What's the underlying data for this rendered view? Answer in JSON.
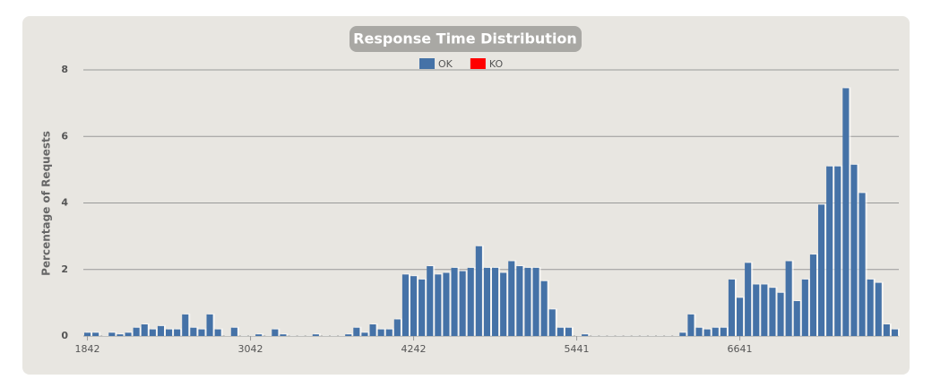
{
  "chart_data": {
    "type": "bar",
    "title": "Response Time Distribution",
    "y_label": "Percentage of Requests",
    "categories": [
      "1842",
      null,
      null,
      null,
      null,
      null,
      null,
      null,
      null,
      null,
      null,
      null,
      null,
      null,
      null,
      null,
      null,
      null,
      null,
      null,
      "3042",
      null,
      null,
      null,
      null,
      null,
      null,
      null,
      null,
      null,
      null,
      null,
      null,
      null,
      null,
      null,
      null,
      null,
      null,
      null,
      "4242",
      null,
      null,
      null,
      null,
      null,
      null,
      null,
      null,
      null,
      null,
      null,
      null,
      null,
      null,
      null,
      null,
      null,
      null,
      null,
      "5441",
      null,
      null,
      null,
      null,
      null,
      null,
      null,
      null,
      null,
      null,
      null,
      null,
      null,
      null,
      null,
      null,
      null,
      null,
      null,
      "6641",
      null,
      null,
      null,
      null,
      null,
      null,
      null,
      null,
      null,
      null,
      null,
      null,
      null,
      null,
      null,
      null,
      null,
      null,
      null
    ],
    "series": [
      {
        "name": "OK",
        "color": "#4572a7",
        "values": [
          0.1,
          0.1,
          0,
          0.1,
          0.05,
          0.1,
          0.25,
          0.35,
          0.2,
          0.3,
          0.2,
          0.2,
          0.65,
          0.25,
          0.2,
          0.65,
          0.2,
          0,
          0.25,
          0,
          0,
          0.05,
          0,
          0.2,
          0.05,
          0,
          0,
          0,
          0.05,
          0,
          0,
          0,
          0.05,
          0.25,
          0.1,
          0.35,
          0.2,
          0.2,
          0.5,
          1.85,
          1.8,
          1.7,
          2.1,
          1.85,
          1.9,
          2.05,
          1.95,
          2.05,
          2.7,
          2.05,
          2.05,
          1.9,
          2.25,
          2.1,
          2.05,
          2.05,
          1.65,
          0.8,
          0.25,
          0.25,
          0,
          0.05,
          0,
          0,
          0,
          0,
          0,
          0,
          0,
          0,
          0,
          0,
          0,
          0.1,
          0.65,
          0.25,
          0.2,
          0.25,
          0.25,
          1.7,
          1.15,
          2.2,
          1.55,
          1.55,
          1.45,
          1.3,
          2.25,
          1.05,
          1.7,
          2.45,
          3.95,
          5.1,
          5.1,
          7.45,
          5.15,
          4.3,
          1.7,
          1.6,
          0.35,
          0.2
        ]
      },
      {
        "name": "KO",
        "color": "#ff0000",
        "values": [
          0,
          0,
          0,
          0,
          0,
          0,
          0,
          0,
          0,
          0,
          0,
          0,
          0,
          0,
          0,
          0,
          0,
          0,
          0,
          0,
          0,
          0,
          0,
          0,
          0,
          0,
          0,
          0,
          0,
          0,
          0,
          0,
          0,
          0,
          0,
          0,
          0,
          0,
          0,
          0,
          0,
          0,
          0,
          0,
          0,
          0,
          0,
          0,
          0,
          0,
          0,
          0,
          0,
          0,
          0,
          0,
          0,
          0,
          0,
          0,
          0,
          0,
          0,
          0,
          0,
          0,
          0,
          0,
          0,
          0,
          0,
          0,
          0,
          0,
          0,
          0,
          0,
          0,
          0,
          0,
          0,
          0,
          0,
          0,
          0,
          0,
          0,
          0,
          0,
          0,
          0,
          0,
          0,
          0,
          0,
          0,
          0,
          0,
          0,
          0
        ]
      }
    ],
    "ylim": [
      0,
      8
    ],
    "yticks": [
      0,
      2,
      4,
      6,
      8
    ],
    "grid": true
  }
}
